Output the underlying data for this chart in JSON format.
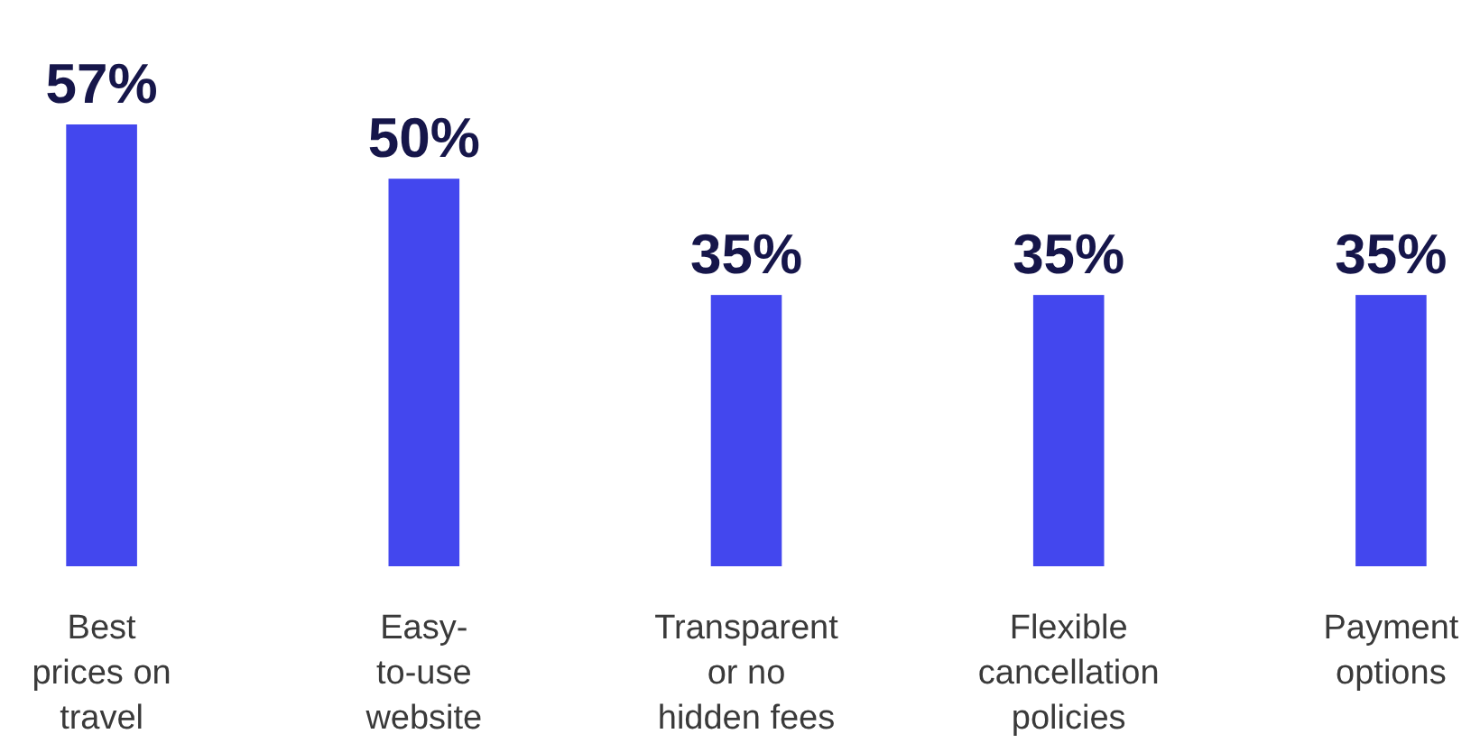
{
  "chart_data": {
    "type": "bar",
    "categories": [
      "Best\nprices on\ntravel",
      "Easy-\nto-use\nwebsite",
      "Transparent\nor no\nhidden fees",
      "Flexible\ncancellation\npolicies",
      "Payment\noptions"
    ],
    "values": [
      57,
      50,
      35,
      35,
      35
    ],
    "color": "#4347ee",
    "data_labels": true,
    "value_labels": [
      "57%",
      "50%",
      "35%",
      "35%",
      "35%"
    ]
  }
}
